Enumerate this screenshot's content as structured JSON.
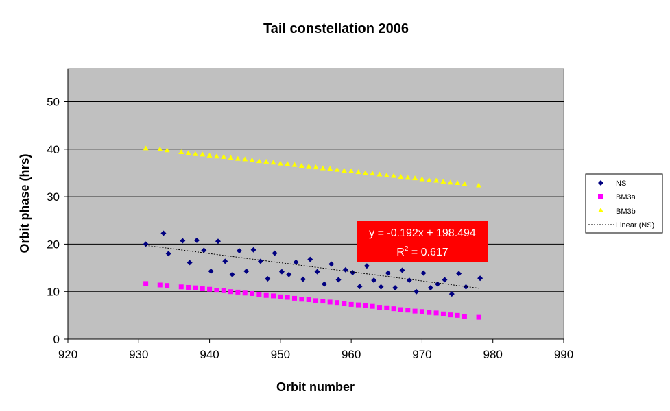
{
  "chart_data": {
    "type": "scatter",
    "title": "Tail constellation 2006",
    "xlabel": "Orbit number",
    "ylabel": "Orbit phase (hrs)",
    "xlim": [
      920,
      990
    ],
    "ylim": [
      0,
      57
    ],
    "xticks": [
      920,
      930,
      940,
      950,
      960,
      970,
      980,
      990
    ],
    "yticks": [
      0,
      10,
      20,
      30,
      40,
      50
    ],
    "grid": "horizontal",
    "legend_position": "right",
    "plot_background": "#c0c0c0",
    "series": [
      {
        "name": "NS",
        "marker": "diamond",
        "color": "#000080",
        "x": [
          931,
          933.5,
          934.2,
          936.2,
          937.2,
          938.2,
          939.2,
          940.2,
          941.2,
          942.2,
          943.2,
          944.2,
          945.2,
          946.2,
          947.2,
          948.2,
          949.2,
          950.2,
          951.2,
          952.2,
          953.2,
          954.2,
          955.2,
          956.2,
          957.2,
          958.2,
          959.2,
          960.2,
          961.2,
          962.2,
          963.2,
          964.2,
          965.2,
          966.2,
          967.2,
          968.2,
          969.2,
          970.2,
          971.2,
          972.2,
          973.2,
          974.2,
          975.2,
          976.2,
          978.2
        ],
        "y": [
          20.0,
          22.3,
          18.0,
          20.7,
          16.1,
          20.8,
          18.7,
          14.3,
          20.6,
          16.4,
          13.6,
          18.6,
          14.3,
          18.8,
          16.4,
          12.7,
          18.1,
          14.2,
          13.6,
          16.2,
          12.6,
          16.8,
          14.2,
          11.6,
          15.8,
          12.5,
          14.6,
          14.0,
          11.1,
          15.4,
          12.4,
          11.0,
          13.9,
          10.8,
          14.5,
          12.4,
          10.0,
          13.9,
          10.8,
          11.6,
          12.5,
          9.5,
          13.8,
          11.0,
          12.8
        ]
      },
      {
        "name": "BM3a",
        "marker": "square",
        "color": "#ff00ff",
        "x": [
          931,
          933,
          934,
          936,
          937,
          938,
          939,
          940,
          941,
          942,
          943,
          944,
          945,
          946,
          947,
          948,
          949,
          950,
          951,
          952,
          953,
          954,
          955,
          956,
          957,
          958,
          959,
          960,
          961,
          962,
          963,
          964,
          965,
          966,
          967,
          968,
          969,
          970,
          971,
          972,
          973,
          974,
          975,
          976,
          978
        ],
        "y": [
          11.7,
          11.4,
          11.3,
          11.0,
          10.9,
          10.8,
          10.6,
          10.5,
          10.3,
          10.2,
          10.0,
          9.9,
          9.7,
          9.6,
          9.4,
          9.2,
          9.1,
          8.9,
          8.8,
          8.6,
          8.4,
          8.3,
          8.1,
          8.0,
          7.8,
          7.7,
          7.5,
          7.3,
          7.2,
          7.0,
          6.9,
          6.7,
          6.6,
          6.4,
          6.2,
          6.1,
          5.9,
          5.8,
          5.6,
          5.5,
          5.3,
          5.1,
          5.0,
          4.8,
          4.6
        ]
      },
      {
        "name": "BM3b",
        "marker": "triangle",
        "color": "#ffff00",
        "x": [
          931,
          933,
          934,
          936,
          937,
          938,
          939,
          940,
          941,
          942,
          943,
          944,
          945,
          946,
          947,
          948,
          949,
          950,
          951,
          952,
          953,
          954,
          955,
          956,
          957,
          958,
          959,
          960,
          961,
          962,
          963,
          964,
          965,
          966,
          967,
          968,
          969,
          970,
          971,
          972,
          973,
          974,
          975,
          976,
          978
        ],
        "y": [
          40.2,
          40.0,
          39.8,
          39.4,
          39.2,
          39.0,
          38.9,
          38.7,
          38.5,
          38.4,
          38.2,
          38.0,
          37.9,
          37.7,
          37.5,
          37.4,
          37.2,
          37.0,
          36.9,
          36.7,
          36.5,
          36.4,
          36.2,
          36.0,
          35.9,
          35.7,
          35.5,
          35.4,
          35.2,
          35.0,
          34.9,
          34.7,
          34.5,
          34.4,
          34.2,
          34.0,
          33.9,
          33.7,
          33.5,
          33.4,
          33.2,
          33.0,
          32.9,
          32.7,
          32.4
        ]
      }
    ],
    "trendline": {
      "name": "Linear (NS)",
      "slope": -0.192,
      "intercept": 198.494,
      "x_range": [
        931,
        978
      ],
      "style": "dotted",
      "color": "#000000",
      "equation_text": "y = -0.192x + 198.494",
      "r2_label": "R",
      "r2_exponent": "2",
      "r2_value_text": " = 0.617",
      "label_background": "#ff0000"
    }
  }
}
